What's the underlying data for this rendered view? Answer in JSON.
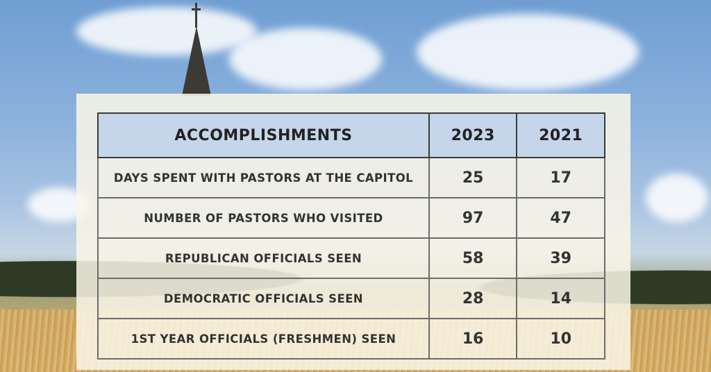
{
  "table": {
    "headers": [
      "ACCOMPLISHMENTS",
      "2023",
      "2021"
    ],
    "rows": [
      {
        "label": "DAYS SPENT WITH PASTORS AT THE CAPITOL",
        "y2023": "25",
        "y2021": "17"
      },
      {
        "label": "NUMBER OF PASTORS WHO VISITED",
        "y2023": "97",
        "y2021": "47"
      },
      {
        "label": "REPUBLICAN OFFICIALS SEEN",
        "y2023": "58",
        "y2021": "39"
      },
      {
        "label": "DEMOCRATIC OFFICIALS SEEN",
        "y2023": "28",
        "y2021": "14"
      },
      {
        "label": "1ST YEAR OFFICIALS (FRESHMEN) SEEN",
        "y2023": "16",
        "y2021": "10"
      }
    ]
  },
  "colors": {
    "header_bg": "#c6d6ea",
    "panel_bg": "#faf6e8",
    "border": "#3a3a3a"
  }
}
